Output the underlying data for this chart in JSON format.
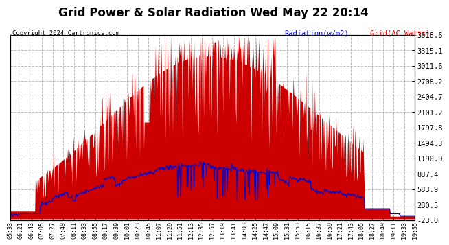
{
  "title": "Grid Power & Solar Radiation Wed May 22 20:14",
  "copyright": "Copyright 2024 Cartronics.com",
  "legend_radiation": "Radiation(w/m2)",
  "legend_grid": "Grid(AC Watts)",
  "ylabel_right_values": [
    3618.6,
    3315.1,
    3011.6,
    2708.2,
    2404.7,
    2101.2,
    1797.8,
    1494.3,
    1190.9,
    887.4,
    583.9,
    280.5,
    -23.0
  ],
  "ymin": -23.0,
  "ymax": 3618.6,
  "background_color": "#ffffff",
  "plot_bg_color": "#ffffff",
  "grid_color": "#bbbbbb",
  "radiation_color": "#cc0000",
  "grid_power_color": "#0000cc",
  "title_fontsize": 12,
  "xlabel_fontsize": 6,
  "ylabel_fontsize": 7.5,
  "x_tick_labels": [
    "05:33",
    "06:21",
    "06:43",
    "07:05",
    "07:27",
    "07:49",
    "08:11",
    "08:33",
    "08:55",
    "09:17",
    "09:39",
    "10:01",
    "10:23",
    "10:45",
    "11:07",
    "11:29",
    "11:51",
    "12:13",
    "12:35",
    "12:57",
    "13:19",
    "13:41",
    "14:03",
    "14:25",
    "14:47",
    "15:09",
    "15:31",
    "15:53",
    "16:15",
    "16:37",
    "16:59",
    "17:21",
    "17:43",
    "18:05",
    "18:27",
    "18:49",
    "19:11",
    "19:33",
    "19:55"
  ]
}
